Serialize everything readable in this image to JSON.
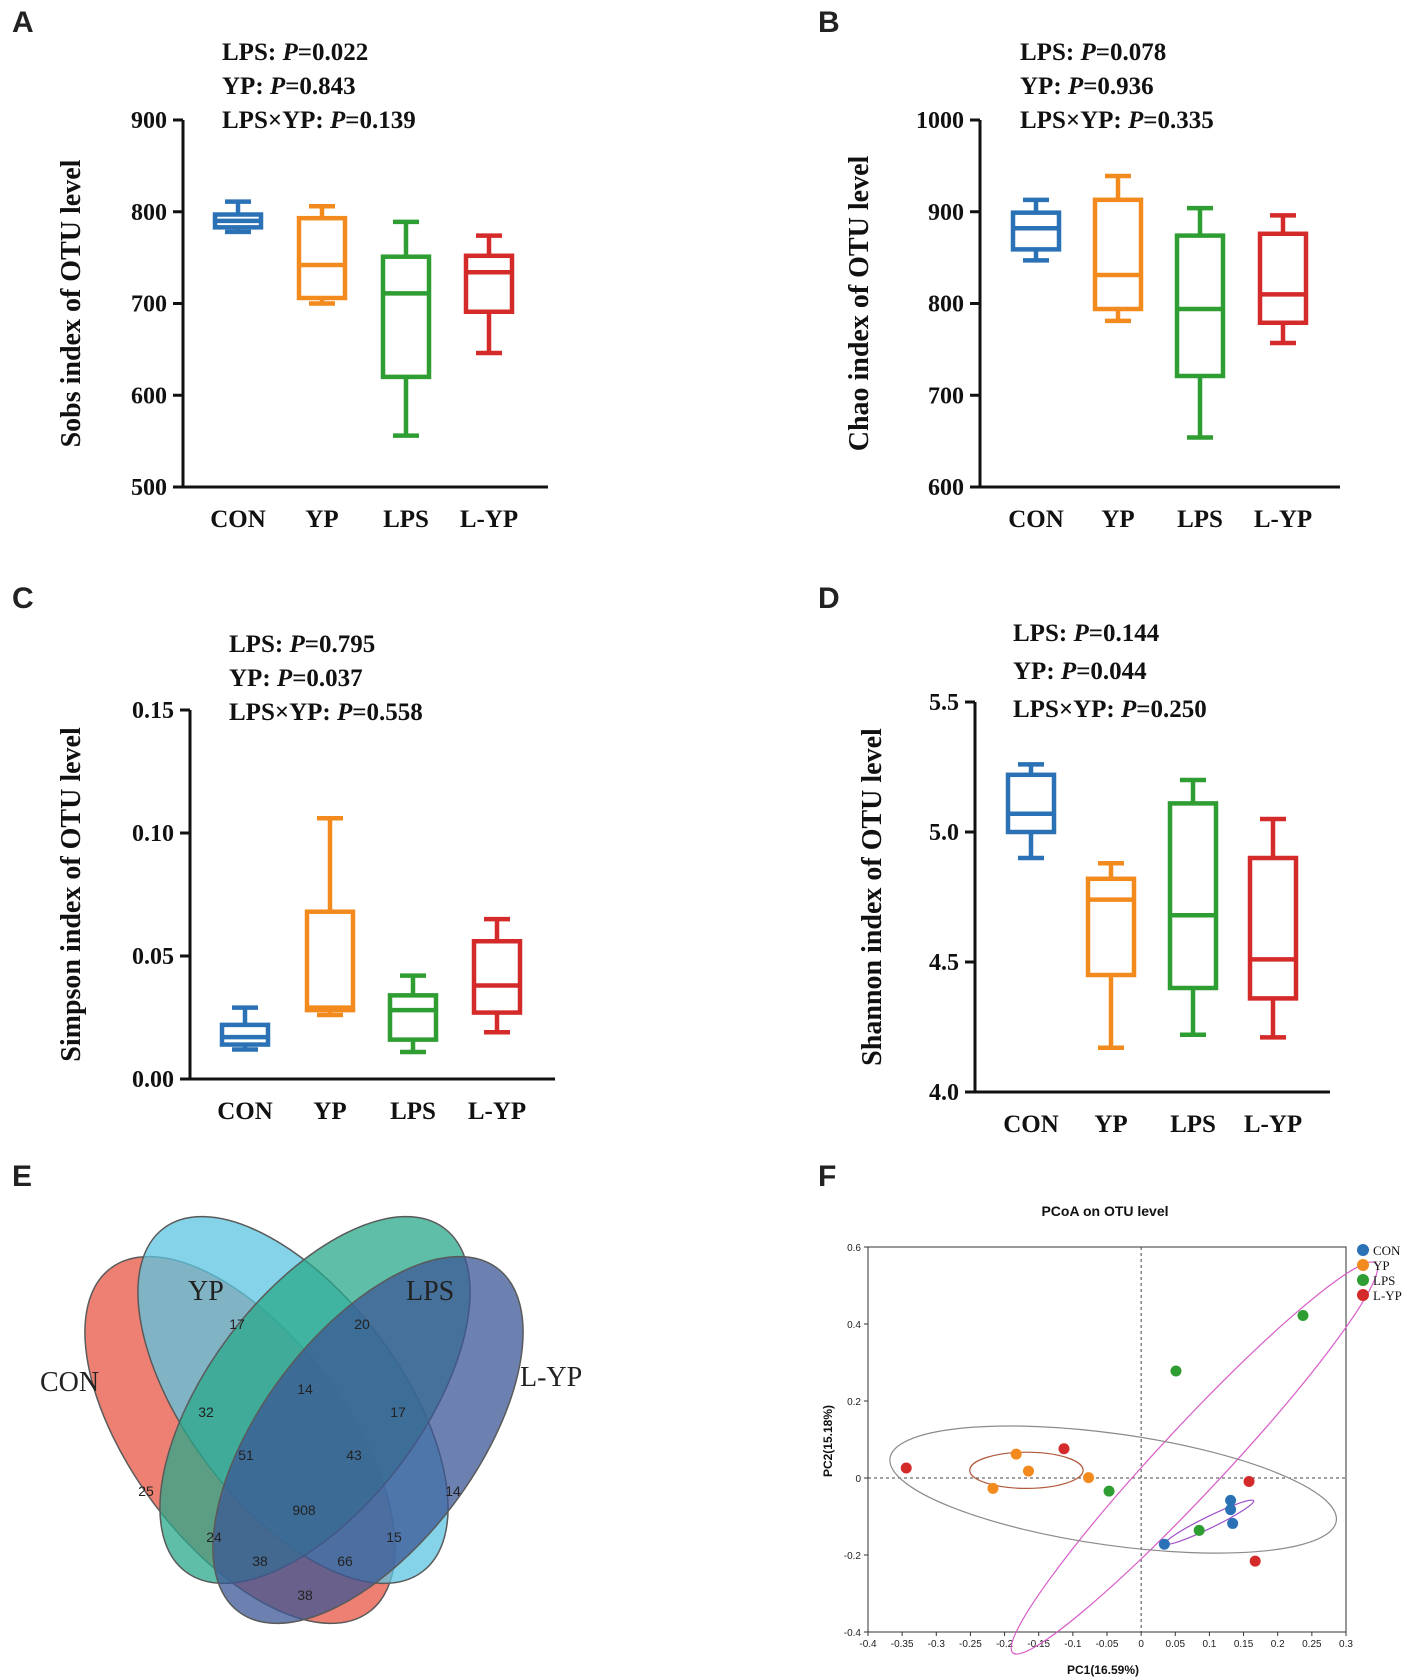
{
  "panels": [
    {
      "letter": "A",
      "stats": [
        {
          "label": "LPS: ",
          "p": "P",
          "value": "=0.022"
        },
        {
          "label": "YP: ",
          "p": "P",
          "value": "=0.843"
        },
        {
          "label": "LPS×YP: ",
          "p": "P",
          "value": "=0.139"
        }
      ]
    },
    {
      "letter": "B",
      "stats": [
        {
          "label": "LPS: ",
          "p": "P",
          "value": "=0.078"
        },
        {
          "label": "YP: ",
          "p": "P",
          "value": "=0.936"
        },
        {
          "label": "LPS×YP: ",
          "p": "P",
          "value": "=0.335"
        }
      ]
    },
    {
      "letter": "C",
      "stats": [
        {
          "label": "LPS: ",
          "p": "P",
          "value": "=0.795"
        },
        {
          "label": "YP: ",
          "p": "P",
          "value": "=0.037"
        },
        {
          "label": "LPS×YP: ",
          "p": "P",
          "value": "=0.558"
        }
      ]
    },
    {
      "letter": "D",
      "stats": [
        {
          "label": "LPS: ",
          "p": "P",
          "value": "=0.144"
        },
        {
          "label": "YP: ",
          "p": "P",
          "value": "=0.044"
        },
        {
          "label": "LPS×YP: ",
          "p": "P",
          "value": "=0.250"
        }
      ]
    },
    {
      "letter": "E"
    },
    {
      "letter": "F"
    }
  ],
  "groups": [
    {
      "name": "CON",
      "color": "#2a72b5"
    },
    {
      "name": "YP",
      "color": "#f28a1e"
    },
    {
      "name": "LPS",
      "color": "#2e9e33"
    },
    {
      "name": "L-YP",
      "color": "#d42a2a"
    }
  ],
  "chart_data": [
    {
      "type": "box",
      "ylabel": "Sobs index of OTU level",
      "ylim": [
        500,
        900
      ],
      "ticks": [
        500,
        600,
        700,
        800,
        900
      ],
      "tick_labels": [
        "500",
        "600",
        "700",
        "800",
        "900"
      ],
      "categories": [
        "CON",
        "YP",
        "LPS",
        "L-YP"
      ],
      "boxes": [
        {
          "min": 778,
          "q1": 783,
          "median": 790,
          "q3": 797,
          "max": 811
        },
        {
          "min": 700,
          "q1": 706,
          "median": 742,
          "q3": 793,
          "max": 806
        },
        {
          "min": 556,
          "q1": 620,
          "median": 711,
          "q3": 751,
          "max": 789
        },
        {
          "min": 646,
          "q1": 691,
          "median": 734,
          "q3": 752,
          "max": 774
        }
      ]
    },
    {
      "type": "box",
      "ylabel": "Chao index of OTU level",
      "ylim": [
        600,
        1000
      ],
      "ticks": [
        600,
        700,
        800,
        900,
        1000
      ],
      "tick_labels": [
        "600",
        "700",
        "800",
        "900",
        "1000"
      ],
      "categories": [
        "CON",
        "YP",
        "LPS",
        "L-YP"
      ],
      "boxes": [
        {
          "min": 847,
          "q1": 859,
          "median": 882,
          "q3": 899,
          "max": 913
        },
        {
          "min": 781,
          "q1": 794,
          "median": 831,
          "q3": 913,
          "max": 939
        },
        {
          "min": 654,
          "q1": 721,
          "median": 794,
          "q3": 874,
          "max": 904
        },
        {
          "min": 757,
          "q1": 779,
          "median": 810,
          "q3": 876,
          "max": 896
        }
      ]
    },
    {
      "type": "box",
      "ylabel": "Simpson index of OTU level",
      "ylim": [
        0,
        0.15
      ],
      "ticks": [
        0,
        0.05,
        0.1,
        0.15
      ],
      "tick_labels": [
        "0.00",
        "0.05",
        "0.10",
        "0.15"
      ],
      "categories": [
        "CON",
        "YP",
        "LPS",
        "L-YP"
      ],
      "boxes": [
        {
          "min": 0.012,
          "q1": 0.014,
          "median": 0.017,
          "q3": 0.022,
          "max": 0.029
        },
        {
          "min": 0.026,
          "q1": 0.028,
          "median": 0.029,
          "q3": 0.068,
          "max": 0.106
        },
        {
          "min": 0.011,
          "q1": 0.016,
          "median": 0.028,
          "q3": 0.034,
          "max": 0.042
        },
        {
          "min": 0.019,
          "q1": 0.027,
          "median": 0.038,
          "q3": 0.056,
          "max": 0.065
        }
      ]
    },
    {
      "type": "box",
      "ylabel": "Shannon index of OTU level",
      "ylim": [
        4.0,
        5.5
      ],
      "ticks": [
        4.0,
        4.5,
        5.0,
        5.5
      ],
      "tick_labels": [
        "4.0",
        "4.5",
        "5.0",
        "5.5"
      ],
      "categories": [
        "CON",
        "YP",
        "LPS",
        "L-YP"
      ],
      "boxes": [
        {
          "min": 4.9,
          "q1": 5.0,
          "median": 5.07,
          "q3": 5.22,
          "max": 5.26
        },
        {
          "min": 4.17,
          "q1": 4.45,
          "median": 4.74,
          "q3": 4.82,
          "max": 4.88
        },
        {
          "min": 4.22,
          "q1": 4.4,
          "median": 4.68,
          "q3": 5.11,
          "max": 5.2
        },
        {
          "min": 4.21,
          "q1": 4.36,
          "median": 4.51,
          "q3": 4.9,
          "max": 5.05
        }
      ]
    },
    {
      "type": "venn",
      "sets": [
        "CON",
        "YP",
        "LPS",
        "L-YP"
      ],
      "set_colors": [
        "#e8604f",
        "#5bc4e0",
        "#2aa88a",
        "#3c5796"
      ],
      "regions": [
        {
          "sets": "CON",
          "value": "25"
        },
        {
          "sets": "YP",
          "value": "17"
        },
        {
          "sets": "LPS",
          "value": "20"
        },
        {
          "sets": "L-YP",
          "value": "14"
        },
        {
          "sets": "CON∩YP",
          "value": "32"
        },
        {
          "sets": "YP∩LPS",
          "value": "14"
        },
        {
          "sets": "LPS∩L-YP",
          "value": "17"
        },
        {
          "sets": "CON∩LPS",
          "value": "24"
        },
        {
          "sets": "YP∩L-YP",
          "value": "15"
        },
        {
          "sets": "CON∩L-YP",
          "value": "38"
        },
        {
          "sets": "CON∩YP∩LPS",
          "value": "51"
        },
        {
          "sets": "YP∩LPS∩L-YP",
          "value": "43"
        },
        {
          "sets": "CON∩YP∩LPS∩L-YP",
          "value": "908"
        },
        {
          "sets": "CON∩LPS∩L-YP",
          "value": "38"
        },
        {
          "sets": "CON∩YP∩L-YP",
          "value": "66"
        }
      ]
    },
    {
      "type": "scatter",
      "title": "PCoA on OTU level",
      "xlabel": "PC1(16.59%)",
      "ylabel": "PC2(15.18%)",
      "xlim": [
        -0.4,
        0.3
      ],
      "ylim": [
        -0.4,
        0.6
      ],
      "xticks": [
        -0.4,
        -0.35,
        -0.3,
        -0.25,
        -0.2,
        -0.15,
        -0.1,
        -0.05,
        0,
        0.05,
        0.1,
        0.15,
        0.2,
        0.25,
        0.3
      ],
      "xtick_labels": [
        "-0.4",
        "-0.35",
        "-0.3",
        "-0.25",
        "-0.2",
        "-0.15",
        "-0.1",
        "-0.05",
        "0",
        "0.05",
        "0.1",
        "0.15",
        "0.2",
        "0.25",
        "0.3"
      ],
      "yticks": [
        -0.4,
        -0.2,
        0,
        0.2,
        0.4,
        0.6
      ],
      "ytick_labels": [
        "-0.4",
        "-0.2",
        "0",
        "0.2",
        "0.4",
        "0.6"
      ],
      "legend": "top-right",
      "series": [
        {
          "name": "CON",
          "color": "#2a72b5",
          "points": [
            [
              0.131,
              -0.058
            ],
            [
              0.131,
              -0.082
            ],
            [
              0.134,
              -0.118
            ],
            [
              0.034,
              -0.172
            ]
          ]
        },
        {
          "name": "YP",
          "color": "#f28a1e",
          "points": [
            [
              -0.183,
              0.062
            ],
            [
              -0.217,
              -0.027
            ],
            [
              -0.165,
              0.018
            ],
            [
              -0.077,
              0.001
            ]
          ]
        },
        {
          "name": "LPS",
          "color": "#2e9e33",
          "points": [
            [
              0.237,
              0.422
            ],
            [
              0.051,
              0.278
            ],
            [
              -0.047,
              -0.034
            ],
            [
              0.085,
              -0.136
            ]
          ]
        },
        {
          "name": "L-YP",
          "color": "#d42a2a",
          "points": [
            [
              -0.344,
              0.026
            ],
            [
              -0.113,
              0.076
            ],
            [
              0.158,
              -0.009
            ],
            [
              0.167,
              -0.216
            ]
          ]
        }
      ],
      "ellipses": [
        {
          "group": "CON",
          "color": "#a050c8",
          "cx": 0.1,
          "cy": -0.115,
          "rx": 0.072,
          "ry": 0.015,
          "angle_deg": -26
        },
        {
          "group": "YP",
          "color": "#b0583a",
          "cx": -0.168,
          "cy": 0.02,
          "rx": 0.083,
          "ry": 0.047,
          "angle_deg": 0
        },
        {
          "group": "LPS",
          "color": "#d85bc8",
          "cx": 0.078,
          "cy": 0.052,
          "rx": 0.39,
          "ry": 0.085,
          "angle_deg": -47
        },
        {
          "group": "L-YP",
          "color": "#8a8a8a",
          "cx": -0.041,
          "cy": -0.03,
          "rx": 0.33,
          "ry": 0.145,
          "angle_deg": 8
        }
      ]
    }
  ]
}
